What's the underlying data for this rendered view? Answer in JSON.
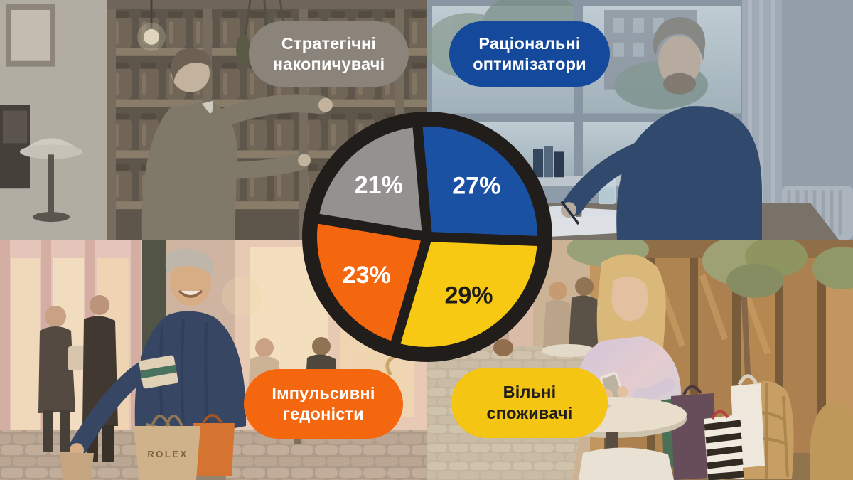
{
  "quadrants": {
    "top_left": {
      "scene": "pantry-jars-woman-bw",
      "pill": {
        "line1": "Стратегічні",
        "line2": "накопичувачі",
        "bg": "#8b847a",
        "text_color": "#ffffff"
      }
    },
    "top_right": {
      "scene": "man-writing-at-desk",
      "pill": {
        "line1": "Раціональні",
        "line2": "оптимізатори",
        "bg": "#15499c",
        "text_color": "#ffffff"
      }
    },
    "bottom_left": {
      "scene": "man-shopping-street",
      "bag_text": "ROLEX",
      "pill": {
        "line1": "Імпульсивні",
        "line2": "гедоністи",
        "bg": "#f4670e",
        "text_color": "#ffffff"
      }
    },
    "bottom_right": {
      "scene": "woman-phone-cafe",
      "pill": {
        "line1": "Вільні",
        "line2": "споживачі",
        "bg": "#f5c513",
        "text_color": "#1f1e1c"
      }
    }
  },
  "chart_data": {
    "type": "pie",
    "title": "",
    "start_angle_deg": -5,
    "direction": "clockwise",
    "ring_color": "#201d1b",
    "label_radius_frac": 0.62,
    "segments": [
      {
        "label": "Раціональні оптимізатори",
        "value": 27,
        "display": "27%",
        "color": "#1b51a2",
        "text_color": "#ffffff"
      },
      {
        "label": "Вільні споживачі",
        "value": 29,
        "display": "29%",
        "color": "#f8c913",
        "text_color": "#1d1c1a"
      },
      {
        "label": "Імпульсивні гедоністи",
        "value": 23,
        "display": "23%",
        "color": "#f4670e",
        "text_color": "#ffffff"
      },
      {
        "label": "Стратегічні накопичувачі",
        "value": 21,
        "display": "21%",
        "color": "#949190",
        "text_color": "#ffffff"
      }
    ]
  }
}
